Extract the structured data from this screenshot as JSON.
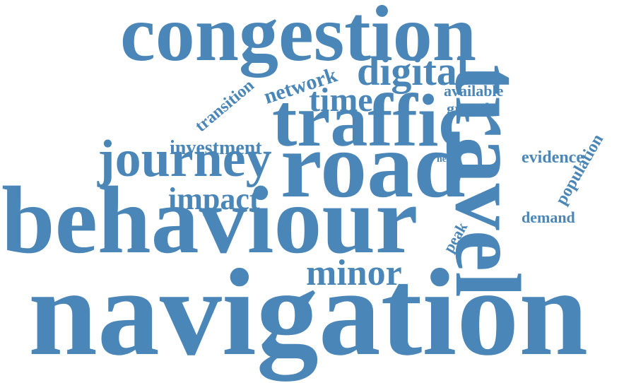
{
  "word_cloud": {
    "color": "#4a86b8",
    "words": [
      {
        "id": "congestion",
        "text": "congestion"
      },
      {
        "id": "travel",
        "text": "travel"
      },
      {
        "id": "digital",
        "text": "digital"
      },
      {
        "id": "network",
        "text": "network"
      },
      {
        "id": "transition",
        "text": "transition"
      },
      {
        "id": "time",
        "text": "time"
      },
      {
        "id": "available",
        "text": "available"
      },
      {
        "id": "growth",
        "text": "growth"
      },
      {
        "id": "traffic",
        "text": "traffic"
      },
      {
        "id": "investment",
        "text": "investment"
      },
      {
        "id": "need",
        "text": "need"
      },
      {
        "id": "evidence",
        "text": "evidence"
      },
      {
        "id": "population",
        "text": "population"
      },
      {
        "id": "journey",
        "text": "journey"
      },
      {
        "id": "road",
        "text": "road"
      },
      {
        "id": "impact",
        "text": "impact"
      },
      {
        "id": "demand",
        "text": "demand"
      },
      {
        "id": "peak",
        "text": "peak"
      },
      {
        "id": "behaviour",
        "text": "behaviour"
      },
      {
        "id": "minor",
        "text": "minor"
      },
      {
        "id": "navigation",
        "text": "navigation"
      }
    ]
  }
}
